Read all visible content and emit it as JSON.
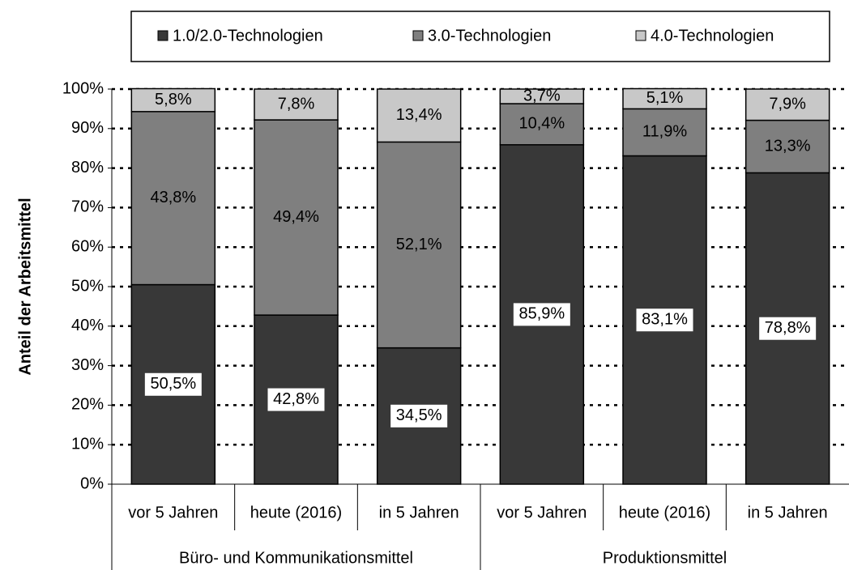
{
  "chart_data": {
    "type": "stacked-bar",
    "y_label": "Anteil der Arbeitsmittel",
    "categories": [
      "vor 5 Jahren",
      "heute (2016)",
      "in 5 Jahren",
      "vor 5 Jahren",
      "heute (2016)",
      "in 5 Jahren"
    ],
    "groups": [
      {
        "name": "Büro- und Kommunikationsmittel",
        "count": 3
      },
      {
        "name": "Produktionsmittel",
        "count": 3
      }
    ],
    "series": [
      {
        "name": "1.0/2.0-Technologien",
        "color": "#383838",
        "values": [
          50.5,
          42.8,
          34.5,
          85.9,
          83.1,
          78.8
        ],
        "value_labels": [
          "50,5%",
          "42,8%",
          "34,5%",
          "85,9%",
          "83,1%",
          "78,8%"
        ]
      },
      {
        "name": "3.0-Technologien",
        "color": "#7f7f7f",
        "values": [
          43.8,
          49.4,
          52.1,
          10.4,
          11.9,
          13.3
        ],
        "value_labels": [
          "43,8%",
          "49,4%",
          "52,1%",
          "10,4%",
          "11,9%",
          "13,3%"
        ]
      },
      {
        "name": "4.0-Technologien",
        "color": "#c8c8c8",
        "values": [
          5.8,
          7.8,
          13.4,
          3.7,
          5.1,
          7.9
        ],
        "value_labels": [
          "5,8%",
          "7,8%",
          "13,4%",
          "3,7%",
          "5,1%",
          "7,9%"
        ]
      }
    ],
    "ylim": [
      0,
      100
    ],
    "yticks": [
      {
        "value": 0,
        "label": "0%"
      },
      {
        "value": 10,
        "label": "10%"
      },
      {
        "value": 20,
        "label": "20%"
      },
      {
        "value": 30,
        "label": "30%"
      },
      {
        "value": 40,
        "label": "40%"
      },
      {
        "value": 50,
        "label": "50%"
      },
      {
        "value": 60,
        "label": "60%"
      },
      {
        "value": 70,
        "label": "70%"
      },
      {
        "value": 80,
        "label": "80%"
      },
      {
        "value": 90,
        "label": "90%"
      },
      {
        "value": 100,
        "label": "100%"
      }
    ],
    "grid": true,
    "legend": "top"
  }
}
